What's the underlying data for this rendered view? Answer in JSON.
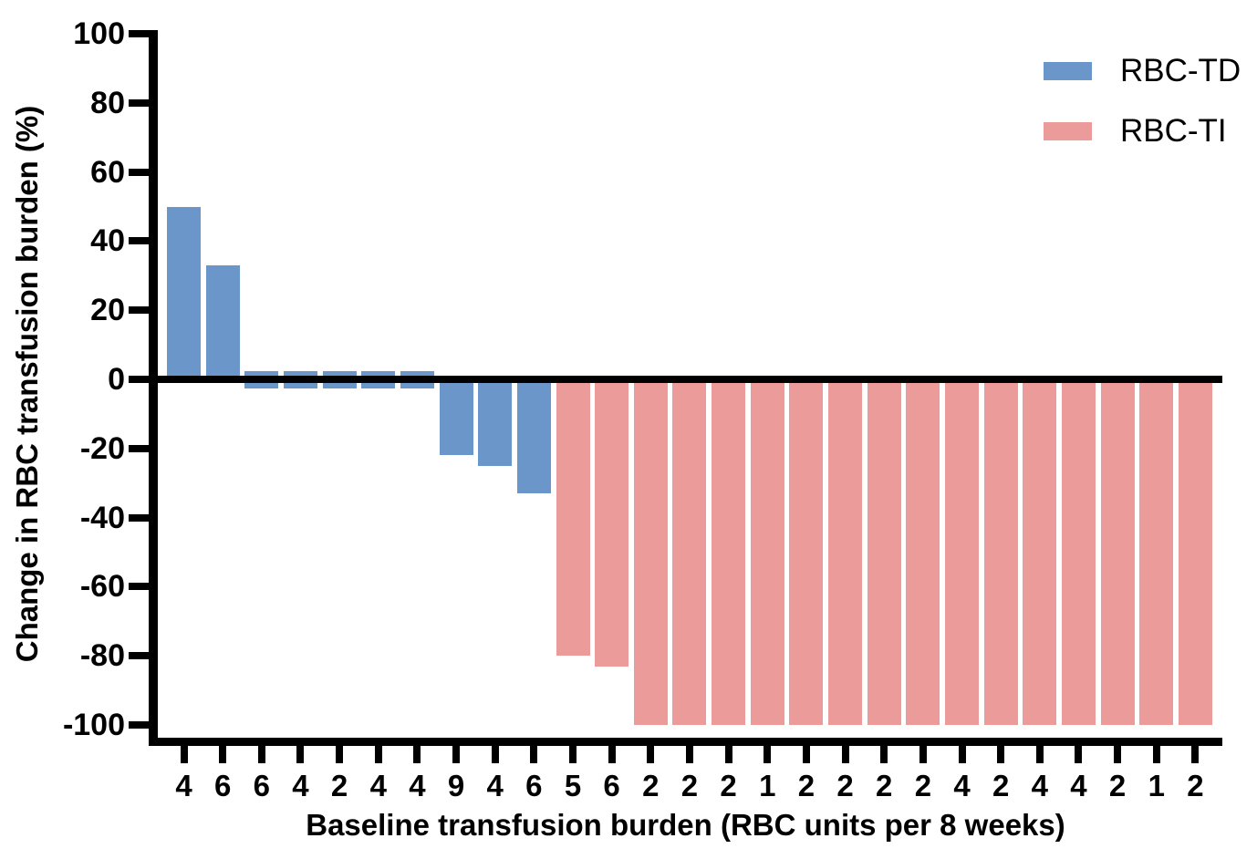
{
  "chart_data": {
    "type": "bar",
    "title": "",
    "xlabel": "Baseline transfusion burden (RBC units per 8 weeks)",
    "ylabel": "Change in RBC transfusion burden (%)",
    "ylim": [
      -100,
      100
    ],
    "yticks": [
      100,
      80,
      60,
      40,
      20,
      0,
      -20,
      -40,
      -60,
      -80,
      -100
    ],
    "grid": false,
    "legend_position": "top-right",
    "axis_color": "#000000",
    "background_color": "#ffffff",
    "groups": [
      {
        "name": "RBC-TD",
        "color": "#6B96C9"
      },
      {
        "name": "RBC-TI",
        "color": "#EC9B9B"
      }
    ],
    "bars": [
      {
        "category": "4",
        "value": 50,
        "group": "RBC-TD"
      },
      {
        "category": "6",
        "value": 33,
        "group": "RBC-TD"
      },
      {
        "category": "6",
        "value": 0,
        "group": "RBC-TD"
      },
      {
        "category": "4",
        "value": 0,
        "group": "RBC-TD"
      },
      {
        "category": "2",
        "value": 0,
        "group": "RBC-TD"
      },
      {
        "category": "4",
        "value": 0,
        "group": "RBC-TD"
      },
      {
        "category": "4",
        "value": 0,
        "group": "RBC-TD"
      },
      {
        "category": "9",
        "value": -22,
        "group": "RBC-TD"
      },
      {
        "category": "4",
        "value": -25,
        "group": "RBC-TD"
      },
      {
        "category": "6",
        "value": -33,
        "group": "RBC-TD"
      },
      {
        "category": "5",
        "value": -80,
        "group": "RBC-TI"
      },
      {
        "category": "6",
        "value": -83,
        "group": "RBC-TI"
      },
      {
        "category": "2",
        "value": -100,
        "group": "RBC-TI"
      },
      {
        "category": "2",
        "value": -100,
        "group": "RBC-TI"
      },
      {
        "category": "2",
        "value": -100,
        "group": "RBC-TI"
      },
      {
        "category": "1",
        "value": -100,
        "group": "RBC-TI"
      },
      {
        "category": "2",
        "value": -100,
        "group": "RBC-TI"
      },
      {
        "category": "2",
        "value": -100,
        "group": "RBC-TI"
      },
      {
        "category": "2",
        "value": -100,
        "group": "RBC-TI"
      },
      {
        "category": "2",
        "value": -100,
        "group": "RBC-TI"
      },
      {
        "category": "4",
        "value": -100,
        "group": "RBC-TI"
      },
      {
        "category": "2",
        "value": -100,
        "group": "RBC-TI"
      },
      {
        "category": "4",
        "value": -100,
        "group": "RBC-TI"
      },
      {
        "category": "4",
        "value": -100,
        "group": "RBC-TI"
      },
      {
        "category": "2",
        "value": -100,
        "group": "RBC-TI"
      },
      {
        "category": "1",
        "value": -100,
        "group": "RBC-TI"
      },
      {
        "category": "2",
        "value": -100,
        "group": "RBC-TI"
      }
    ]
  }
}
